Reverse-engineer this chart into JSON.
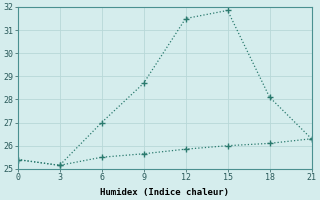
{
  "xlabel": "Humidex (Indice chaleur)",
  "line1_x": [
    0,
    3,
    6,
    9,
    12,
    15,
    18,
    21
  ],
  "line1_y": [
    25.4,
    25.15,
    25.5,
    25.65,
    25.85,
    26.0,
    26.1,
    26.3
  ],
  "line2_x": [
    0,
    3,
    6,
    9,
    12,
    15,
    18,
    21
  ],
  "line2_y": [
    25.4,
    25.15,
    27.0,
    28.7,
    31.5,
    31.85,
    28.1,
    26.3
  ],
  "line_color": "#2a7a6e",
  "bg_color": "#d5eded",
  "grid_color": "#b8d8d8",
  "xlim": [
    0,
    21
  ],
  "ylim": [
    25,
    32
  ],
  "xticks": [
    0,
    3,
    6,
    9,
    12,
    15,
    18,
    21
  ],
  "yticks": [
    25,
    26,
    27,
    28,
    29,
    30,
    31,
    32
  ]
}
